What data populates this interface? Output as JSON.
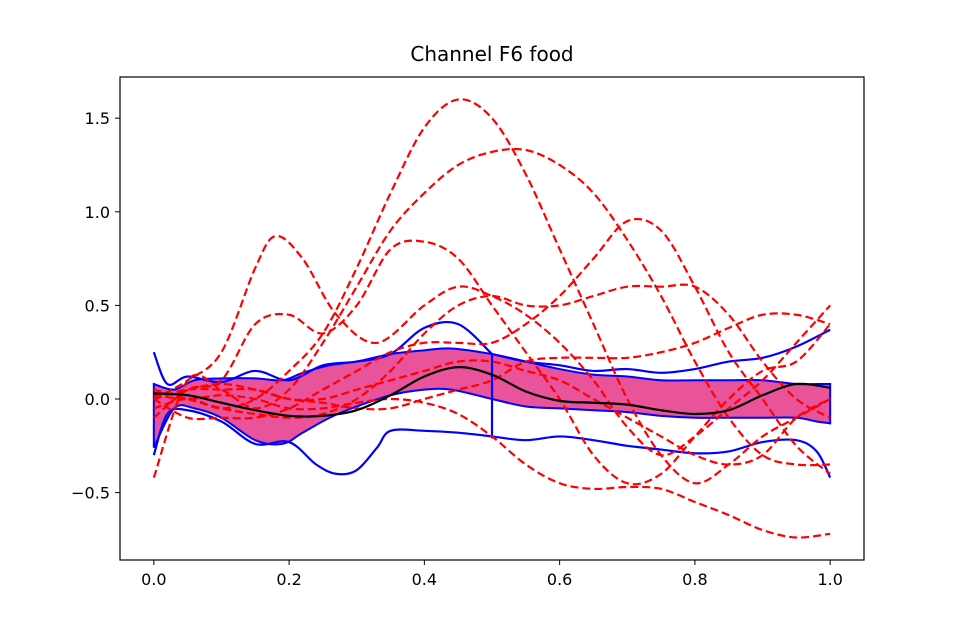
{
  "chart_data": {
    "type": "line",
    "title": "Channel F6 food",
    "xlabel": "",
    "ylabel": "",
    "xlim": [
      -0.05,
      1.05
    ],
    "ylim": [
      -0.86,
      1.72
    ],
    "grid": false,
    "legend": "none",
    "x_ticks": [
      {
        "value": 0.0,
        "label": "0.0"
      },
      {
        "value": 0.2,
        "label": "0.2"
      },
      {
        "value": 0.4,
        "label": "0.4"
      },
      {
        "value": 0.6,
        "label": "0.6"
      },
      {
        "value": 0.8,
        "label": "0.8"
      },
      {
        "value": 1.0,
        "label": "1.0"
      }
    ],
    "y_ticks": [
      {
        "value": -0.5,
        "label": "−0.5"
      },
      {
        "value": 0.0,
        "label": "0.0"
      },
      {
        "value": 0.5,
        "label": "0.5"
      },
      {
        "value": 1.0,
        "label": "1.0"
      },
      {
        "value": 1.5,
        "label": "1.5"
      }
    ],
    "colors": {
      "outlier": "#ff0000",
      "envelope": "#0000ff",
      "median": "#000000",
      "band": "#e8539a"
    },
    "band": {
      "x": [
        0.0,
        0.03,
        0.06,
        0.1,
        0.15,
        0.19,
        0.22,
        0.26,
        0.3,
        0.35,
        0.4,
        0.44,
        0.5,
        0.55,
        0.6,
        0.65,
        0.7,
        0.75,
        0.8,
        0.85,
        0.9,
        0.95,
        0.98,
        1.0
      ],
      "upper": [
        0.08,
        0.05,
        0.1,
        0.11,
        0.11,
        0.1,
        0.14,
        0.18,
        0.2,
        0.24,
        0.26,
        0.27,
        0.24,
        0.2,
        0.16,
        0.13,
        0.12,
        0.1,
        0.1,
        0.1,
        0.1,
        0.08,
        0.08,
        0.08
      ],
      "lower": [
        -0.26,
        -0.05,
        -0.05,
        -0.1,
        -0.22,
        -0.24,
        -0.18,
        -0.1,
        -0.04,
        0.02,
        0.05,
        0.05,
        0.0,
        -0.04,
        -0.05,
        -0.06,
        -0.07,
        -0.09,
        -0.1,
        -0.1,
        -0.1,
        -0.1,
        -0.12,
        -0.13
      ]
    },
    "series": [
      {
        "role": "median",
        "x": [
          0.0,
          0.05,
          0.1,
          0.15,
          0.2,
          0.25,
          0.3,
          0.35,
          0.4,
          0.45,
          0.5,
          0.55,
          0.6,
          0.65,
          0.7,
          0.75,
          0.8,
          0.85,
          0.9,
          0.95,
          1.0
        ],
        "values": [
          0.03,
          0.02,
          -0.02,
          -0.06,
          -0.09,
          -0.09,
          -0.06,
          0.02,
          0.12,
          0.17,
          0.13,
          0.04,
          -0.01,
          -0.02,
          -0.03,
          -0.06,
          -0.08,
          -0.06,
          0.02,
          0.08,
          0.06
        ]
      },
      {
        "role": "envelope",
        "x": [
          0.0,
          0.02,
          0.05,
          0.1,
          0.15,
          0.2,
          0.25,
          0.3,
          0.35,
          0.4,
          0.45,
          0.5
        ],
        "values": [
          0.25,
          0.08,
          0.12,
          0.09,
          0.15,
          0.1,
          0.18,
          0.2,
          0.24,
          0.38,
          0.4,
          0.24
        ]
      },
      {
        "role": "envelope",
        "x": [
          0.5,
          0.55,
          0.6,
          0.65,
          0.7,
          0.75,
          0.8,
          0.85,
          0.9,
          0.95,
          1.0
        ],
        "values": [
          0.24,
          0.2,
          0.18,
          0.15,
          0.16,
          0.14,
          0.16,
          0.2,
          0.22,
          0.28,
          0.37
        ]
      },
      {
        "role": "envelope",
        "x": [
          0.0,
          0.02,
          0.05,
          0.1,
          0.15,
          0.2,
          0.24,
          0.27,
          0.3,
          0.33,
          0.35,
          0.4,
          0.45,
          0.5
        ],
        "values": [
          -0.3,
          -0.08,
          -0.06,
          -0.12,
          -0.24,
          -0.23,
          -0.35,
          -0.4,
          -0.38,
          -0.26,
          -0.17,
          -0.17,
          -0.18,
          -0.2
        ]
      },
      {
        "role": "envelope",
        "x": [
          0.5,
          0.55,
          0.6,
          0.65,
          0.7,
          0.75,
          0.8,
          0.85,
          0.9,
          0.95,
          0.98,
          1.0
        ],
        "values": [
          -0.2,
          -0.22,
          -0.2,
          -0.22,
          -0.25,
          -0.27,
          -0.29,
          -0.28,
          -0.23,
          -0.22,
          -0.28,
          -0.42
        ]
      },
      {
        "role": "envelope",
        "x": [
          0.5,
          0.5
        ],
        "values": [
          0.24,
          -0.21
        ]
      },
      {
        "role": "outlier",
        "x": [
          0.0,
          0.05,
          0.1,
          0.15,
          0.18,
          0.22,
          0.27,
          0.33,
          0.4,
          0.45,
          0.5,
          0.55,
          0.6,
          0.65,
          0.7,
          0.75,
          0.8,
          0.85,
          0.9,
          0.95,
          1.0
        ],
        "values": [
          0.0,
          0.1,
          0.25,
          0.7,
          0.87,
          0.75,
          0.45,
          0.3,
          0.5,
          0.6,
          0.55,
          0.45,
          0.3,
          0.1,
          -0.15,
          -0.3,
          -0.2,
          -0.05,
          0.1,
          0.3,
          0.5
        ]
      },
      {
        "role": "outlier",
        "x": [
          0.0,
          0.05,
          0.1,
          0.15,
          0.2,
          0.25,
          0.3,
          0.35,
          0.4,
          0.45,
          0.5,
          0.55,
          0.6,
          0.65,
          0.7,
          0.75,
          0.8,
          0.85,
          0.9,
          0.95,
          1.0
        ],
        "values": [
          -0.1,
          0.05,
          0.1,
          0.4,
          0.45,
          0.35,
          0.5,
          0.8,
          0.84,
          0.75,
          0.5,
          0.25,
          0.0,
          -0.3,
          -0.45,
          -0.4,
          -0.2,
          0.0,
          0.15,
          0.2,
          0.4
        ]
      },
      {
        "role": "outlier",
        "x": [
          0.0,
          0.05,
          0.1,
          0.15,
          0.2,
          0.25,
          0.3,
          0.35,
          0.4,
          0.45,
          0.5,
          0.55,
          0.6,
          0.65,
          0.7,
          0.75,
          0.8,
          0.85,
          0.9,
          0.95,
          1.0
        ],
        "values": [
          -0.05,
          0.0,
          -0.05,
          0.0,
          0.15,
          0.35,
          0.7,
          1.1,
          1.45,
          1.6,
          1.5,
          1.2,
          0.8,
          0.4,
          0.0,
          -0.3,
          -0.45,
          -0.35,
          -0.2,
          -0.1,
          0.0
        ]
      },
      {
        "role": "outlier",
        "x": [
          0.0,
          0.05,
          0.1,
          0.15,
          0.2,
          0.25,
          0.3,
          0.35,
          0.4,
          0.45,
          0.5,
          0.55,
          0.6,
          0.65,
          0.7,
          0.75,
          0.8,
          0.85,
          0.9,
          0.95,
          1.0
        ],
        "values": [
          -0.42,
          0.1,
          0.05,
          -0.05,
          0.05,
          0.3,
          0.6,
          0.9,
          1.1,
          1.25,
          1.32,
          1.33,
          1.25,
          1.1,
          0.85,
          0.55,
          0.2,
          -0.1,
          -0.3,
          -0.35,
          -0.35
        ]
      },
      {
        "role": "outlier",
        "x": [
          0.0,
          0.05,
          0.1,
          0.15,
          0.2,
          0.25,
          0.3,
          0.35,
          0.4,
          0.45,
          0.5,
          0.55,
          0.6,
          0.65,
          0.7,
          0.75,
          0.8,
          0.85,
          0.9,
          0.95,
          1.0
        ],
        "values": [
          0.0,
          -0.1,
          -0.1,
          -0.1,
          -0.05,
          0.05,
          0.15,
          0.25,
          0.3,
          0.3,
          0.3,
          0.4,
          0.55,
          0.75,
          0.95,
          0.9,
          0.6,
          0.25,
          0.0,
          -0.25,
          -0.4
        ]
      },
      {
        "role": "outlier",
        "x": [
          0.0,
          0.05,
          0.1,
          0.15,
          0.2,
          0.25,
          0.3,
          0.35,
          0.4,
          0.45,
          0.5,
          0.55,
          0.6,
          0.65,
          0.7,
          0.75,
          0.8,
          0.85,
          0.9,
          0.95,
          1.0
        ],
        "values": [
          0.05,
          0.0,
          -0.05,
          -0.08,
          -0.1,
          -0.08,
          0.0,
          0.15,
          0.35,
          0.5,
          0.55,
          0.5,
          0.5,
          0.55,
          0.6,
          0.6,
          0.6,
          0.45,
          0.2,
          0.0,
          -0.1
        ]
      },
      {
        "role": "outlier",
        "x": [
          0.0,
          0.05,
          0.1,
          0.15,
          0.2,
          0.25,
          0.3,
          0.35,
          0.4,
          0.45,
          0.5,
          0.55,
          0.6,
          0.65,
          0.7,
          0.75,
          0.8,
          0.85,
          0.9,
          0.95,
          1.0
        ],
        "values": [
          0.0,
          0.05,
          0.05,
          0.05,
          0.0,
          -0.02,
          -0.05,
          -0.05,
          0.0,
          0.05,
          0.1,
          0.2,
          0.22,
          0.22,
          0.22,
          0.25,
          0.3,
          0.38,
          0.45,
          0.45,
          0.4
        ]
      },
      {
        "role": "outlier",
        "x": [
          0.0,
          0.05,
          0.1,
          0.15,
          0.2,
          0.25,
          0.3,
          0.35,
          0.4,
          0.45,
          0.5,
          0.55,
          0.6,
          0.65,
          0.7,
          0.75,
          0.8,
          0.85,
          0.9,
          0.95,
          1.0
        ],
        "values": [
          0.02,
          0.0,
          0.02,
          0.0,
          -0.05,
          -0.05,
          -0.02,
          0.0,
          -0.02,
          -0.08,
          -0.2,
          -0.35,
          -0.45,
          -0.48,
          -0.47,
          -0.48,
          -0.55,
          -0.62,
          -0.7,
          -0.74,
          -0.72
        ]
      },
      {
        "role": "outlier",
        "x": [
          0.0,
          0.05,
          0.1,
          0.15,
          0.2,
          0.25,
          0.3,
          0.35,
          0.4,
          0.45,
          0.5,
          0.55,
          0.6,
          0.65,
          0.7,
          0.75,
          0.8,
          0.85,
          0.9,
          0.95,
          1.0
        ],
        "values": [
          0.0,
          0.05,
          0.08,
          0.05,
          0.0,
          0.0,
          0.05,
          0.1,
          0.15,
          0.2,
          0.2,
          0.15,
          0.1,
          0.0,
          -0.1,
          -0.2,
          -0.3,
          -0.35,
          -0.3,
          -0.1,
          0.0
        ]
      }
    ]
  }
}
